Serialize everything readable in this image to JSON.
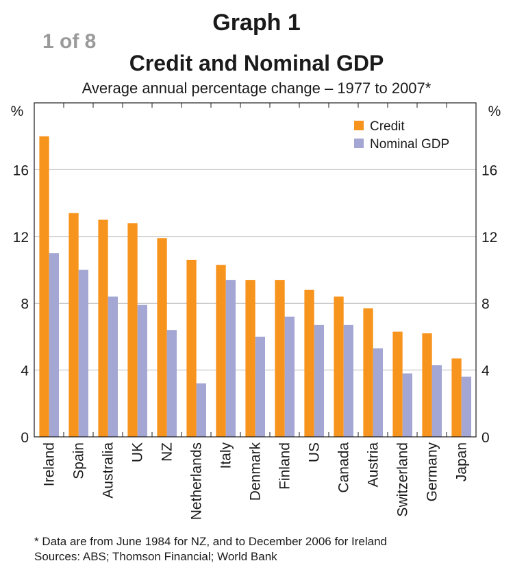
{
  "page_counter": "1 of 8",
  "chart_data": {
    "type": "bar",
    "graph_label": "Graph 1",
    "title": "Credit and Nominal GDP",
    "subtitle": "Average annual percentage change – 1977 to 2007*",
    "ylabel": "%",
    "ylim": [
      0,
      20
    ],
    "yticks": [
      0,
      4,
      8,
      12,
      16
    ],
    "grid": true,
    "legend_position": "top-right",
    "categories": [
      "Ireland",
      "Spain",
      "Australia",
      "UK",
      "NZ",
      "Netherlands",
      "Italy",
      "Denmark",
      "Finland",
      "US",
      "Canada",
      "Austria",
      "Switzerland",
      "Germany",
      "Japan"
    ],
    "series": [
      {
        "name": "Credit",
        "color": "#f7941d",
        "values": [
          18.0,
          13.4,
          13.0,
          12.8,
          11.9,
          10.6,
          10.3,
          9.4,
          9.4,
          8.8,
          8.4,
          7.7,
          6.3,
          6.2,
          4.7
        ]
      },
      {
        "name": "Nominal GDP",
        "color": "#a4a7d3",
        "values": [
          11.0,
          10.0,
          8.4,
          7.9,
          6.4,
          3.2,
          9.4,
          6.0,
          7.2,
          6.7,
          6.7,
          5.3,
          3.8,
          4.3,
          3.6
        ]
      }
    ]
  },
  "footnote": {
    "note": "*   Data are from June 1984 for NZ, and to December 2006 for Ireland",
    "sources": "Sources: ABS; Thomson Financial; World Bank"
  }
}
